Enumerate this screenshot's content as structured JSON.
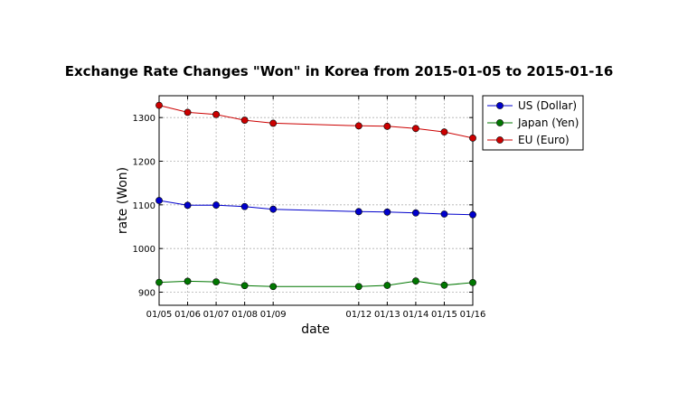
{
  "chart_data": {
    "type": "line",
    "title": "Exchange Rate Changes \"Won\" in Korea from 2015-01-05 to 2015-01-16",
    "xlabel": "date",
    "ylabel": "rate (Won)",
    "x": [
      "2015-01-05",
      "2015-01-06",
      "2015-01-07",
      "2015-01-08",
      "2015-01-09",
      "2015-01-12",
      "2015-01-13",
      "2015-01-14",
      "2015-01-15",
      "2015-01-16"
    ],
    "x_tick_labels": [
      "01/05",
      "01/06",
      "01/07",
      "01/08",
      "01/09",
      "01/12",
      "01/13",
      "01/14",
      "01/15",
      "01/16"
    ],
    "ylim": [
      870,
      1350
    ],
    "yticks": [
      900,
      1000,
      1100,
      1200,
      1300
    ],
    "grid": true,
    "legend_position": "outside-right-top",
    "series": [
      {
        "name": "US (Dollar)",
        "color": "#0000cc",
        "values": [
          1110,
          1099,
          1099.5,
          1096,
          1090,
          1084.5,
          1083.5,
          1081.5,
          1079,
          1077.5
        ]
      },
      {
        "name": "Japan (Yen)",
        "color": "#007700",
        "values": [
          922.5,
          925,
          923.5,
          915,
          913,
          913,
          915.5,
          925.5,
          916,
          922
        ]
      },
      {
        "name": "EU (Euro)",
        "color": "#cc0000",
        "values": [
          1328,
          1312,
          1307,
          1294,
          1287,
          1281,
          1280,
          1275,
          1267,
          1253
        ]
      }
    ]
  }
}
